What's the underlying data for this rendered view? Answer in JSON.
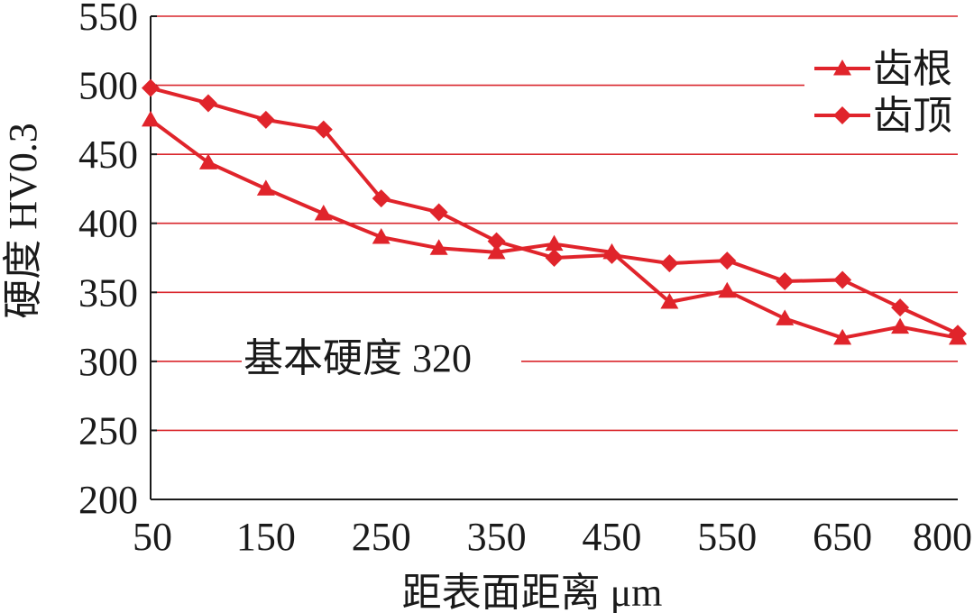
{
  "chart_data": {
    "type": "line",
    "xlabel": "距表面距离 μm",
    "ylabel": "硬度 HV0.3",
    "ylim": [
      200,
      550
    ],
    "y_ticks": [
      "200",
      "250",
      "300",
      "350",
      "400",
      "450",
      "500",
      "550"
    ],
    "x_tick_labels": [
      "50",
      "150",
      "250",
      "350",
      "450",
      "550",
      "650",
      "800"
    ],
    "x": [
      50,
      100,
      150,
      200,
      250,
      300,
      350,
      400,
      450,
      500,
      550,
      600,
      650,
      700,
      800
    ],
    "grid": true,
    "legend_position": "top-right",
    "line_color": "#e0242b",
    "grid_color": "#d9262c",
    "series": [
      {
        "name": "齿根",
        "marker": "triangle",
        "values": [
          475,
          444,
          425,
          407,
          390,
          382,
          379,
          385,
          379,
          343,
          351,
          331,
          317,
          325,
          317
        ]
      },
      {
        "name": "齿顶",
        "marker": "diamond",
        "values": [
          498,
          487,
          475,
          468,
          418,
          408,
          387,
          375,
          377,
          371,
          373,
          358,
          359,
          339,
          320
        ]
      }
    ],
    "annotation": "基本硬度 320"
  }
}
